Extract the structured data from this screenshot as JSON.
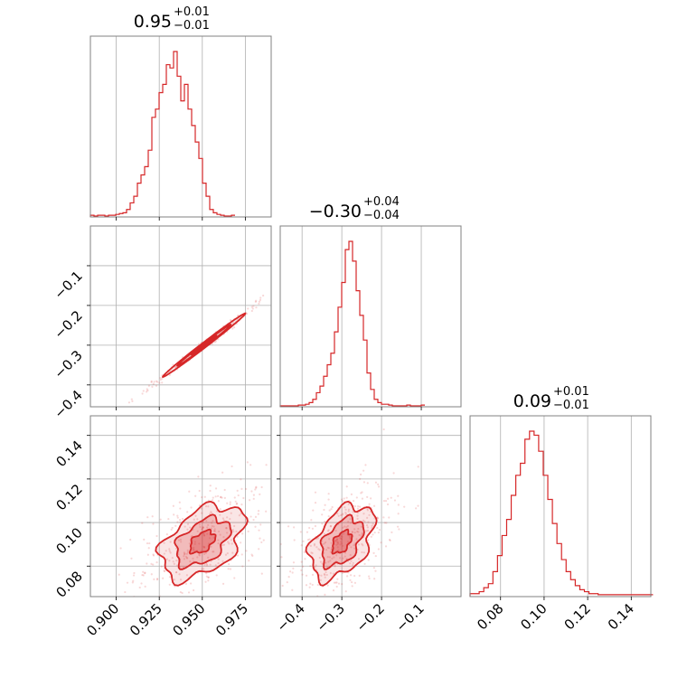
{
  "chart_data": {
    "type": "corner",
    "series_color": "#d62728",
    "grid": true,
    "parameters": [
      {
        "title": {
          "value": "0.95",
          "plus": "+0.01",
          "minus": "−0.01"
        },
        "range": [
          0.885,
          0.99
        ],
        "ticks": [
          0.9,
          0.925,
          0.95,
          0.975
        ],
        "tick_labels": [
          "0.900",
          "0.925",
          "0.950",
          "0.975"
        ]
      },
      {
        "title": {
          "value": "−0.30",
          "plus": "+0.04",
          "minus": "−0.04"
        },
        "range": [
          -0.455,
          -0.0
        ],
        "ticks": [
          -0.4,
          -0.3,
          -0.2,
          -0.1
        ],
        "tick_labels": [
          "−0.4",
          "−0.3",
          "−0.2",
          "−0.1"
        ]
      },
      {
        "title": {
          "value": "0.09",
          "plus": "+0.01",
          "minus": "−0.01"
        },
        "range": [
          0.066,
          0.149
        ],
        "ticks": [
          0.08,
          0.1,
          0.12,
          0.14
        ],
        "tick_labels": [
          "0.08",
          "0.10",
          "0.12",
          "0.14"
        ]
      }
    ],
    "histograms": [
      {
        "param": 0,
        "bin_start": 0.885,
        "bin_width": 0.0021,
        "counts": [
          0.5,
          0,
          0.5,
          0.5,
          0,
          0.5,
          0.5,
          1,
          1.5,
          2,
          4,
          8,
          12,
          20,
          25,
          30,
          40,
          60,
          65,
          75,
          80,
          92,
          90,
          100,
          85,
          70,
          80,
          65,
          55,
          45,
          35,
          20,
          12,
          4,
          2,
          1,
          0.5,
          0,
          0,
          0.5
        ]
      },
      {
        "param": 1,
        "bin_start": -0.455,
        "bin_width": 0.0091,
        "counts": [
          0,
          0,
          0,
          0,
          0,
          0.5,
          0.5,
          1,
          2,
          4,
          8,
          12,
          18,
          25,
          32,
          45,
          60,
          75,
          95,
          100,
          88,
          70,
          55,
          40,
          20,
          10,
          4,
          2,
          1,
          1,
          0.5,
          0,
          0,
          0,
          0,
          0.5,
          0,
          0,
          0,
          0.5
        ]
      },
      {
        "param": 2,
        "bin_start": 0.066,
        "bin_width": 0.0021,
        "counts": [
          1,
          1,
          2,
          4,
          6,
          12,
          20,
          30,
          38,
          50,
          60,
          66,
          78,
          82,
          80,
          72,
          60,
          48,
          36,
          26,
          18,
          12,
          8,
          5,
          3,
          2,
          1,
          1,
          0.5,
          0.5,
          0.5,
          0.5,
          0.5,
          0.5,
          0.5,
          0.5,
          0.5,
          0.5,
          0.5,
          0.5
        ]
      }
    ],
    "pair_plots": [
      {
        "x_param": 0,
        "y_param": 1,
        "kind": "narrow-correlated",
        "mean": [
          0.951,
          -0.3
        ],
        "sigma": [
          0.012,
          0.04
        ],
        "rho": 0.995
      },
      {
        "x_param": 0,
        "y_param": 2,
        "kind": "blob",
        "mean": [
          0.95,
          0.091
        ],
        "sigma": [
          0.012,
          0.0085
        ],
        "rho": 0.45
      },
      {
        "x_param": 1,
        "y_param": 2,
        "kind": "blob",
        "mean": [
          -0.3,
          0.091
        ],
        "sigma": [
          0.04,
          0.0085
        ],
        "rho": 0.45
      }
    ]
  }
}
